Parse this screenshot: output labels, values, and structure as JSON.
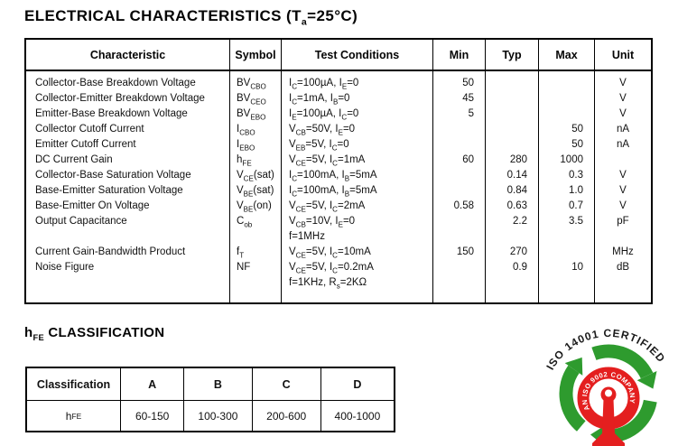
{
  "electrical": {
    "title": "ELECTRICAL CHARACTERISTICS (T~a~=25°C)",
    "headers": [
      "Characteristic",
      "Symbol",
      "Test Conditions",
      "Min",
      "Typ",
      "Max",
      "Unit"
    ],
    "rows": [
      {
        "ch": "Collector-Base Breakdown Voltage",
        "sym": "BV~CBO~",
        "cond": [
          "I~C~=100µA, I~E~=0"
        ],
        "min": "50",
        "typ": "",
        "max": "",
        "unit": "V"
      },
      {
        "ch": "Collector-Emitter Breakdown Voltage",
        "sym": "BV~CEO~",
        "cond": [
          "I~C~=1mA, I~B~=0"
        ],
        "min": "45",
        "typ": "",
        "max": "",
        "unit": "V"
      },
      {
        "ch": "Emitter-Base Breakdown Voltage",
        "sym": "BV~EBO~",
        "cond": [
          "I~E~=100µA, I~C~=0"
        ],
        "min": "5",
        "typ": "",
        "max": "",
        "unit": "V"
      },
      {
        "ch": "Collector Cutoff Current",
        "sym": "I~CBO~",
        "cond": [
          "V~CB~=50V, I~E~=0"
        ],
        "min": "",
        "typ": "",
        "max": "50",
        "unit": "nA"
      },
      {
        "ch": "Emitter Cutoff Current",
        "sym": "I~EBO~",
        "cond": [
          "V~EB~=5V, I~C~=0"
        ],
        "min": "",
        "typ": "",
        "max": "50",
        "unit": "nA"
      },
      {
        "ch": "DC Current Gain",
        "sym": "h~FE~",
        "cond": [
          "V~CE~=5V, I~C~=1mA"
        ],
        "min": "60",
        "typ": "280",
        "max": "1000",
        "unit": ""
      },
      {
        "ch": "Collector-Base Saturation Voltage",
        "sym": "V~CE~(sat)",
        "cond": [
          "I~C~=100mA, I~B~=5mA"
        ],
        "min": "",
        "typ": "0.14",
        "max": "0.3",
        "unit": "V"
      },
      {
        "ch": "Base-Emitter Saturation Voltage",
        "sym": "V~BE~(sat)",
        "cond": [
          "I~C~=100mA, I~B~=5mA"
        ],
        "min": "",
        "typ": "0.84",
        "max": "1.0",
        "unit": "V"
      },
      {
        "ch": "Base-Emitter On Voltage",
        "sym": "V~BE~(on)",
        "cond": [
          "V~CE~=5V, I~C~=2mA"
        ],
        "min": "0.58",
        "typ": "0.63",
        "max": "0.7",
        "unit": "V"
      },
      {
        "ch": "Output Capacitance",
        "sym": "C~ob~",
        "cond": [
          "V~CB~=10V, I~E~=0",
          "f=1MHz"
        ],
        "min": "",
        "typ": "2.2",
        "max": "3.5",
        "unit": "pF"
      },
      {
        "ch": "Current Gain-Bandwidth Product",
        "sym": "f~T~",
        "cond": [
          "V~CE~=5V, I~C~=10mA"
        ],
        "min": "150",
        "typ": "270",
        "max": "",
        "unit": "MHz"
      },
      {
        "ch": "Noise Figure",
        "sym": "NF",
        "cond": [
          "V~CE~=5V, I~C~=0.2mA",
          "f=1KHz, R~s~=2KΩ"
        ],
        "min": "",
        "typ": "0.9",
        "max": "10",
        "unit": "dB"
      }
    ]
  },
  "hfe": {
    "title": "h~FE~ CLASSIFICATION",
    "headers": [
      "Classification",
      "A",
      "B",
      "C",
      "D"
    ],
    "row": [
      "h~FE~",
      "60-150",
      "100-300",
      "200-600",
      "400-1000"
    ]
  },
  "logo": {
    "arc_text": "ISO 14001 CERTIFIED",
    "ring_text": "AN ISO 9002 COMPANY",
    "green": "#2e9b2e",
    "red": "#e41f1f"
  }
}
